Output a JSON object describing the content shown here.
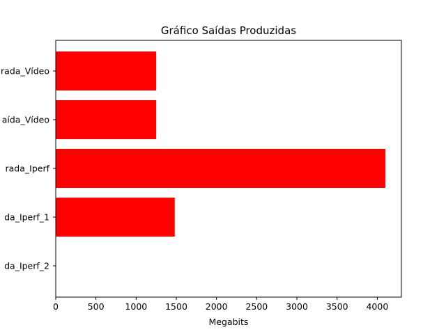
{
  "chart_data": {
    "type": "bar",
    "orientation": "horizontal",
    "title": "Gráfico Saídas Produzidas",
    "xlabel": "Megabits",
    "ylabel": "",
    "categories": [
      "rada_Vídeo",
      "aída_Vídeo",
      "rada_Iperf",
      "da_Iperf_1",
      "da_Iperf_2"
    ],
    "values": [
      1250,
      1250,
      4100,
      1480,
      0
    ],
    "xlim": [
      0,
      4300
    ],
    "xticks": [
      0,
      500,
      1000,
      1500,
      2000,
      2500,
      3000,
      3500,
      4000
    ],
    "grid": false,
    "bar_color": "#ff0000"
  }
}
